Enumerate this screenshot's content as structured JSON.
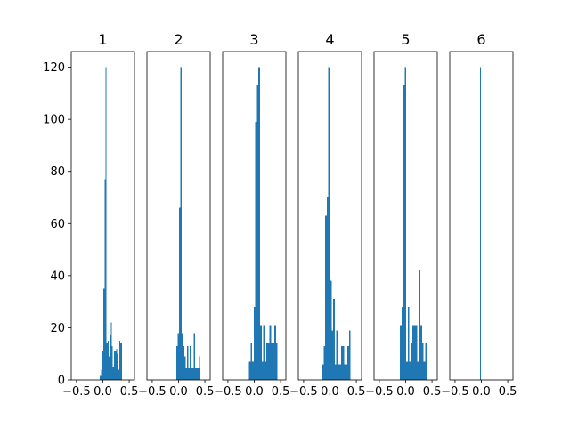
{
  "chart_data": {
    "type": "bar",
    "bar_color": "#1f77b4",
    "grid": false,
    "shared_y": true,
    "ylim": [
      0,
      126
    ],
    "yticks": [
      "0",
      "20",
      "40",
      "60",
      "80",
      "100",
      "120"
    ],
    "xlim": [
      -0.6,
      0.6
    ],
    "xticks": [
      "−0.5",
      "0.0",
      "0.5"
    ],
    "panels": [
      {
        "title": "1",
        "bins": [
          {
            "x0": -0.06,
            "x1": -0.03,
            "y": 1.5
          },
          {
            "x0": -0.03,
            "x1": -0.01,
            "y": 4
          },
          {
            "x0": -0.01,
            "x1": 0.01,
            "y": 11
          },
          {
            "x0": 0.01,
            "x1": 0.03,
            "y": 35
          },
          {
            "x0": 0.03,
            "x1": 0.05,
            "y": 77
          },
          {
            "x0": 0.05,
            "x1": 0.07,
            "y": 120
          },
          {
            "x0": 0.07,
            "x1": 0.09,
            "y": 14
          },
          {
            "x0": 0.09,
            "x1": 0.11,
            "y": 15
          },
          {
            "x0": 0.11,
            "x1": 0.13,
            "y": 9
          },
          {
            "x0": 0.13,
            "x1": 0.15,
            "y": 17
          },
          {
            "x0": 0.15,
            "x1": 0.17,
            "y": 22
          },
          {
            "x0": 0.17,
            "x1": 0.19,
            "y": 13
          },
          {
            "x0": 0.19,
            "x1": 0.21,
            "y": 5
          },
          {
            "x0": 0.21,
            "x1": 0.23,
            "y": 11
          },
          {
            "x0": 0.23,
            "x1": 0.25,
            "y": 11
          },
          {
            "x0": 0.25,
            "x1": 0.27,
            "y": 12
          },
          {
            "x0": 0.27,
            "x1": 0.29,
            "y": 10
          },
          {
            "x0": 0.29,
            "x1": 0.31,
            "y": 4
          },
          {
            "x0": 0.31,
            "x1": 0.33,
            "y": 15
          },
          {
            "x0": 0.33,
            "x1": 0.36,
            "y": 14
          }
        ]
      },
      {
        "title": "2",
        "bins": [
          {
            "x0": -0.04,
            "x1": -0.015,
            "y": 13
          },
          {
            "x0": -0.015,
            "x1": 0.01,
            "y": 18
          },
          {
            "x0": 0.01,
            "x1": 0.035,
            "y": 66
          },
          {
            "x0": 0.035,
            "x1": 0.06,
            "y": 120
          },
          {
            "x0": 0.06,
            "x1": 0.085,
            "y": 18
          },
          {
            "x0": 0.085,
            "x1": 0.11,
            "y": 13
          },
          {
            "x0": 0.11,
            "x1": 0.135,
            "y": 9
          },
          {
            "x0": 0.135,
            "x1": 0.16,
            "y": 4.5
          },
          {
            "x0": 0.16,
            "x1": 0.185,
            "y": 13
          },
          {
            "x0": 0.185,
            "x1": 0.21,
            "y": 4.5
          },
          {
            "x0": 0.21,
            "x1": 0.235,
            "y": 13
          },
          {
            "x0": 0.235,
            "x1": 0.26,
            "y": 4.5
          },
          {
            "x0": 0.26,
            "x1": 0.285,
            "y": 4.5
          },
          {
            "x0": 0.285,
            "x1": 0.31,
            "y": 18
          },
          {
            "x0": 0.31,
            "x1": 0.335,
            "y": 4.5
          },
          {
            "x0": 0.335,
            "x1": 0.36,
            "y": 4.5
          },
          {
            "x0": 0.36,
            "x1": 0.385,
            "y": 4.5
          },
          {
            "x0": 0.385,
            "x1": 0.41,
            "y": 9
          }
        ]
      },
      {
        "title": "3",
        "bins": [
          {
            "x0": -0.1,
            "x1": -0.07,
            "y": 7
          },
          {
            "x0": -0.07,
            "x1": -0.04,
            "y": 14
          },
          {
            "x0": -0.04,
            "x1": -0.01,
            "y": 7
          },
          {
            "x0": -0.01,
            "x1": 0.02,
            "y": 28
          },
          {
            "x0": 0.02,
            "x1": 0.05,
            "y": 99
          },
          {
            "x0": 0.05,
            "x1": 0.08,
            "y": 113
          },
          {
            "x0": 0.08,
            "x1": 0.11,
            "y": 120
          },
          {
            "x0": 0.11,
            "x1": 0.14,
            "y": 21
          },
          {
            "x0": 0.14,
            "x1": 0.17,
            "y": 7
          },
          {
            "x0": 0.17,
            "x1": 0.2,
            "y": 21
          },
          {
            "x0": 0.2,
            "x1": 0.23,
            "y": 7
          },
          {
            "x0": 0.23,
            "x1": 0.26,
            "y": 14
          },
          {
            "x0": 0.26,
            "x1": 0.29,
            "y": 14
          },
          {
            "x0": 0.29,
            "x1": 0.32,
            "y": 21
          },
          {
            "x0": 0.32,
            "x1": 0.35,
            "y": 14
          },
          {
            "x0": 0.35,
            "x1": 0.38,
            "y": 14
          },
          {
            "x0": 0.38,
            "x1": 0.41,
            "y": 21
          },
          {
            "x0": 0.41,
            "x1": 0.44,
            "y": 14
          }
        ]
      },
      {
        "title": "4",
        "bins": [
          {
            "x0": -0.15,
            "x1": -0.12,
            "y": 6
          },
          {
            "x0": -0.12,
            "x1": -0.09,
            "y": 13
          },
          {
            "x0": -0.09,
            "x1": -0.06,
            "y": 63
          },
          {
            "x0": -0.06,
            "x1": -0.03,
            "y": 70
          },
          {
            "x0": -0.03,
            "x1": 0.0,
            "y": 120
          },
          {
            "x0": 0.0,
            "x1": 0.03,
            "y": 38
          },
          {
            "x0": 0.03,
            "x1": 0.06,
            "y": 19
          },
          {
            "x0": 0.06,
            "x1": 0.09,
            "y": 31
          },
          {
            "x0": 0.09,
            "x1": 0.12,
            "y": 6
          },
          {
            "x0": 0.12,
            "x1": 0.15,
            "y": 19
          },
          {
            "x0": 0.15,
            "x1": 0.18,
            "y": 6
          },
          {
            "x0": 0.18,
            "x1": 0.21,
            "y": 6
          },
          {
            "x0": 0.21,
            "x1": 0.24,
            "y": 13
          },
          {
            "x0": 0.24,
            "x1": 0.27,
            "y": 13
          },
          {
            "x0": 0.27,
            "x1": 0.3,
            "y": 6
          },
          {
            "x0": 0.3,
            "x1": 0.33,
            "y": 6
          },
          {
            "x0": 0.33,
            "x1": 0.36,
            "y": 13
          },
          {
            "x0": 0.36,
            "x1": 0.39,
            "y": 19
          }
        ]
      },
      {
        "title": "5",
        "bins": [
          {
            "x0": -0.11,
            "x1": -0.08,
            "y": 21
          },
          {
            "x0": -0.08,
            "x1": -0.05,
            "y": 28
          },
          {
            "x0": -0.05,
            "x1": -0.02,
            "y": 113
          },
          {
            "x0": -0.02,
            "x1": 0.01,
            "y": 120
          },
          {
            "x0": 0.01,
            "x1": 0.04,
            "y": 7
          },
          {
            "x0": 0.04,
            "x1": 0.07,
            "y": 28
          },
          {
            "x0": 0.07,
            "x1": 0.1,
            "y": 7
          },
          {
            "x0": 0.1,
            "x1": 0.13,
            "y": 14
          },
          {
            "x0": 0.13,
            "x1": 0.16,
            "y": 21
          },
          {
            "x0": 0.16,
            "x1": 0.19,
            "y": 21
          },
          {
            "x0": 0.19,
            "x1": 0.22,
            "y": 21
          },
          {
            "x0": 0.22,
            "x1": 0.25,
            "y": 7
          },
          {
            "x0": 0.25,
            "x1": 0.28,
            "y": 42
          },
          {
            "x0": 0.28,
            "x1": 0.31,
            "y": 21
          },
          {
            "x0": 0.31,
            "x1": 0.34,
            "y": 14
          },
          {
            "x0": 0.34,
            "x1": 0.37,
            "y": 7
          },
          {
            "x0": 0.37,
            "x1": 0.4,
            "y": 14
          }
        ]
      },
      {
        "title": "6",
        "bins": [
          {
            "x0": -0.025,
            "x1": -0.005,
            "y": 120
          }
        ]
      }
    ]
  }
}
